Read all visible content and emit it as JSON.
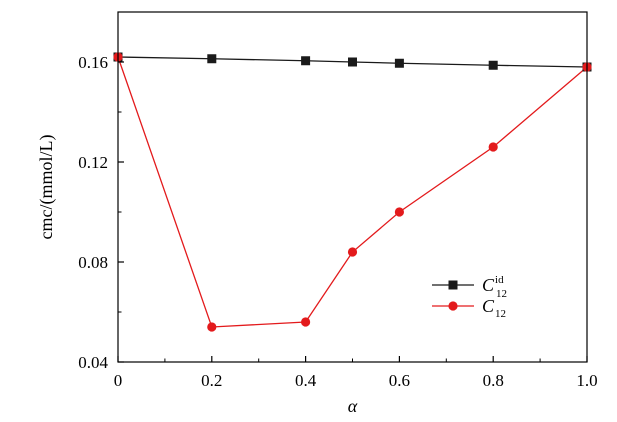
{
  "chart_data": {
    "type": "line",
    "xlabel": "α",
    "ylabel": "cmc/(mmol/L)",
    "xlim": [
      0,
      1.0
    ],
    "ylim": [
      0.04,
      0.18
    ],
    "x_ticks": [
      "0",
      "0.2",
      "0.4",
      "0.6",
      "0.8",
      "1.0"
    ],
    "x_tick_values": [
      0,
      0.2,
      0.4,
      0.6,
      0.8,
      1.0
    ],
    "y_ticks": [
      "0.04",
      "0.08",
      "0.12",
      "0.16"
    ],
    "y_tick_values": [
      0.04,
      0.08,
      0.12,
      0.16
    ],
    "legend_position": "center-right",
    "grid": false,
    "series": [
      {
        "name": "C",
        "name_superscript": "id",
        "name_subscript": "12",
        "color": "#1a1a1a",
        "marker": "square",
        "x": [
          0,
          0.2,
          0.4,
          0.5,
          0.6,
          0.8,
          1.0
        ],
        "y": [
          0.162,
          0.1613,
          0.1605,
          0.16,
          0.1595,
          0.1587,
          0.158
        ]
      },
      {
        "name": "C",
        "name_superscript": "",
        "name_subscript": "12",
        "color": "#e31a1c",
        "marker": "circle",
        "x": [
          0,
          0.2,
          0.4,
          0.5,
          0.6,
          0.8,
          1.0
        ],
        "y": [
          0.162,
          0.054,
          0.056,
          0.084,
          0.1,
          0.126,
          0.158
        ]
      }
    ]
  }
}
